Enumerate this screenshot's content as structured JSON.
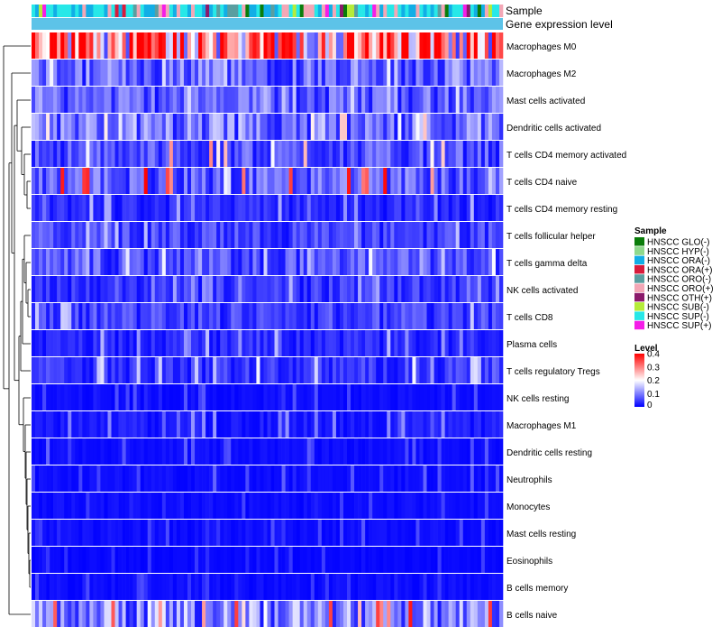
{
  "chart_data": {
    "type": "heatmap",
    "annotation_tracks": [
      "Sample",
      "Gene expression level"
    ],
    "rows": [
      "Macrophages M0",
      "Macrophages M2",
      "Mast cells activated",
      "Dendritic cells activated",
      "T cells CD4 memory activated",
      "T cells CD4 naive",
      "T cells CD4 memory resting",
      "T cells follicular helper",
      "T cells gamma delta",
      "NK cells activated",
      "T cells CD8",
      "Plasma cells",
      "T cells regulatory  Tregs",
      "NK cells resting",
      "Macrophages M1",
      "Dendritic cells resting",
      "Neutrophils",
      "Monocytes",
      "Mast cells resting",
      "Eosinophils",
      "B cells memory",
      "B cells naive"
    ],
    "row_mean_level": [
      0.28,
      0.08,
      0.07,
      0.09,
      0.06,
      0.07,
      0.03,
      0.05,
      0.06,
      0.04,
      0.05,
      0.03,
      0.04,
      0.01,
      0.02,
      0.01,
      0.01,
      0.01,
      0.01,
      0.005,
      0.01,
      0.1
    ],
    "row_peak_level": [
      0.4,
      0.2,
      0.18,
      0.25,
      0.3,
      0.4,
      0.15,
      0.16,
      0.2,
      0.15,
      0.18,
      0.15,
      0.2,
      0.07,
      0.12,
      0.08,
      0.08,
      0.06,
      0.07,
      0.05,
      0.06,
      0.4
    ],
    "n_samples": 130,
    "sample_legend": {
      "title": "Sample",
      "entries": [
        {
          "label": "HNSCC GLO(-)",
          "color": "#0a7d0a"
        },
        {
          "label": "HNSCC HYP(-)",
          "color": "#8fd98c"
        },
        {
          "label": "HNSCC ORA(-)",
          "color": "#12aee6"
        },
        {
          "label": "HNSCC ORA(+)",
          "color": "#d81b3c"
        },
        {
          "label": "HNSCC ORO(-)",
          "color": "#5a9ea0"
        },
        {
          "label": "HNSCC ORO(+)",
          "color": "#f3a7b6"
        },
        {
          "label": "HNSCC OTH(+)",
          "color": "#8b1a6b"
        },
        {
          "label": "HNSCC SUB(-)",
          "color": "#b5ec3a"
        },
        {
          "label": "HNSCC SUP(-)",
          "color": "#27e8e8"
        },
        {
          "label": "HNSCC SUP(+)",
          "color": "#f51de8"
        }
      ]
    },
    "level_legend": {
      "title": "Level",
      "ticks": [
        "0.4",
        "0.3",
        "0.2",
        "0.1",
        "0"
      ],
      "tick_values": [
        0.4,
        0.3,
        0.2,
        0.1,
        0
      ],
      "range": [
        0,
        0.4
      ],
      "colors": {
        "low": "#0000ff",
        "mid": "#ffffff",
        "high": "#ff0000"
      }
    },
    "level_track_color": "#5dc3e8"
  }
}
